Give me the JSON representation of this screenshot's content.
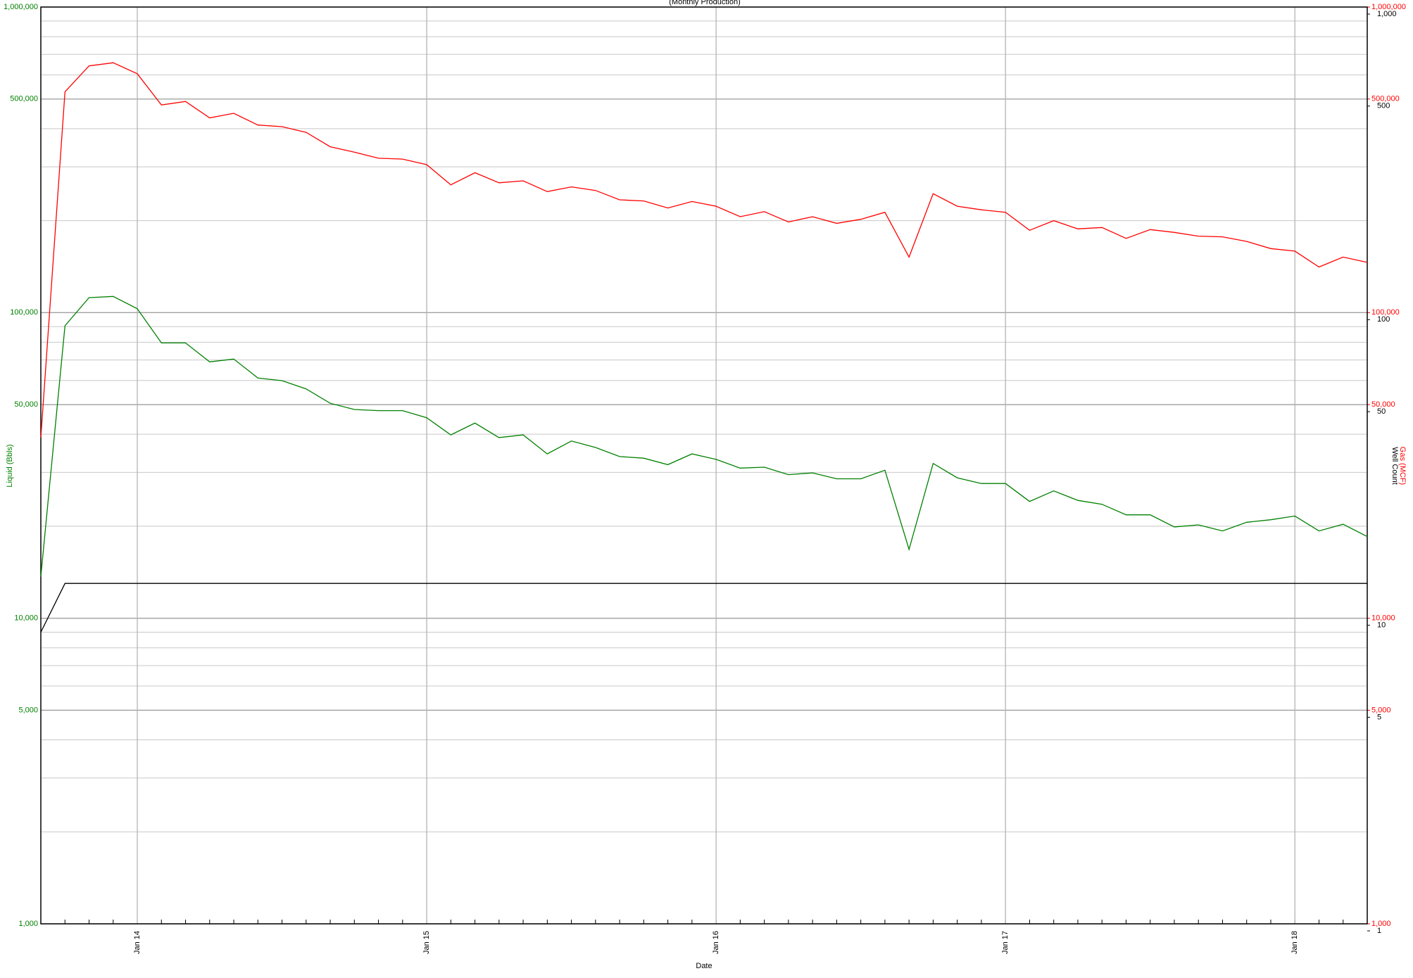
{
  "chart_data": {
    "type": "line",
    "title": "(Monthly Production)",
    "x_label": "Date",
    "x": [
      "2013-09",
      "2013-10",
      "2013-11",
      "2013-12",
      "2014-01",
      "2014-02",
      "2014-03",
      "2014-04",
      "2014-05",
      "2014-06",
      "2014-07",
      "2014-08",
      "2014-09",
      "2014-10",
      "2014-11",
      "2014-12",
      "2015-01",
      "2015-02",
      "2015-03",
      "2015-04",
      "2015-05",
      "2015-06",
      "2015-07",
      "2015-08",
      "2015-09",
      "2015-10",
      "2015-11",
      "2015-12",
      "2016-01",
      "2016-02",
      "2016-03",
      "2016-04",
      "2016-05",
      "2016-06",
      "2016-07",
      "2016-08",
      "2016-09",
      "2016-10",
      "2016-11",
      "2016-12",
      "2017-01",
      "2017-02",
      "2017-03",
      "2017-04",
      "2017-05",
      "2017-06",
      "2017-07",
      "2017-08",
      "2017-09",
      "2017-10",
      "2017-11",
      "2017-12",
      "2018-01",
      "2018-02",
      "2018-03",
      "2018-04"
    ],
    "xlim": [
      "2013-09",
      "2018-04"
    ],
    "xticks": [
      {
        "value": "2014-01",
        "label": "Jan 14"
      },
      {
        "value": "2015-01",
        "label": "Jan 15"
      },
      {
        "value": "2016-01",
        "label": "Jan 16"
      },
      {
        "value": "2017-01",
        "label": "Jan 17"
      },
      {
        "value": "2018-01",
        "label": "Jan 18"
      }
    ],
    "log_scale": true,
    "grid": true,
    "ylim": [
      1000,
      1000000
    ],
    "yticks": [
      {
        "value": 1000,
        "label": "1,000"
      },
      {
        "value": 5000,
        "label": "5,000"
      },
      {
        "value": 10000,
        "label": "10,000"
      },
      {
        "value": 50000,
        "label": "50,000"
      },
      {
        "value": 100000,
        "label": "100,000"
      },
      {
        "value": 500000,
        "label": "500,000"
      },
      {
        "value": 1000000,
        "label": "1,000,000"
      }
    ],
    "y2lim": [
      1000,
      1000000
    ],
    "y2ticks": [
      {
        "value": 1000,
        "label": "1,000"
      },
      {
        "value": 5000,
        "label": "5,000"
      },
      {
        "value": 10000,
        "label": "10,000"
      },
      {
        "value": 50000,
        "label": "50,000"
      },
      {
        "value": 100000,
        "label": "100,000"
      },
      {
        "value": 500000,
        "label": "500,000"
      },
      {
        "value": 1000000,
        "label": "1,000,000"
      }
    ],
    "y3lim": [
      1,
      1000
    ],
    "y3ticks": [
      1,
      5,
      10,
      50,
      100,
      500,
      {
        "value": 1000,
        "label": "1,000"
      }
    ],
    "series": [
      {
        "name": "Liquid (Bbls)",
        "color": "#008000",
        "values": [
          13700,
          90600,
          112000,
          113000,
          103000,
          79600,
          79600,
          69000,
          70500,
          61100,
          59900,
          56300,
          50500,
          48200,
          47800,
          47800,
          45300,
          39800,
          43500,
          39000,
          39800,
          34500,
          38000,
          36200,
          33800,
          33400,
          31800,
          34500,
          33100,
          31000,
          31200,
          29500,
          29900,
          28600,
          28600,
          30500,
          16800,
          32100,
          28800,
          27600,
          27600,
          24100,
          26100,
          24300,
          23600,
          21800,
          21800,
          19900,
          20200,
          19300,
          20600,
          21000,
          21600,
          19300,
          20300,
          18500
        ]
      },
      {
        "name": "Gas (MCF)",
        "color": "#ff0000",
        "axis": "y2",
        "values": [
          39000,
          528000,
          642000,
          657000,
          605000,
          478000,
          491000,
          434000,
          449000,
          411000,
          406000,
          389000,
          349000,
          335000,
          320000,
          318000,
          305000,
          262000,
          287000,
          266000,
          270000,
          249000,
          258000,
          251000,
          234000,
          232000,
          220000,
          231000,
          223000,
          206000,
          214000,
          198000,
          206000,
          196000,
          202000,
          213000,
          152000,
          245000,
          223000,
          217000,
          213000,
          186000,
          200000,
          188000,
          190000,
          175000,
          187000,
          183000,
          178000,
          177000,
          171000,
          162000,
          159000,
          141000,
          152000,
          146000
        ]
      },
      {
        "name": "Well Count",
        "color": "#000000",
        "axis": "y3",
        "values": [
          9,
          13,
          13,
          13,
          13,
          13,
          13,
          13,
          13,
          13,
          13,
          13,
          13,
          13,
          13,
          13,
          13,
          13,
          13,
          13,
          13,
          13,
          13,
          13,
          13,
          13,
          13,
          13,
          13,
          13,
          13,
          13,
          13,
          13,
          13,
          13,
          13,
          13,
          13,
          13,
          13,
          13,
          13,
          13,
          13,
          13,
          13,
          13,
          13,
          13,
          13,
          13,
          13,
          13,
          13,
          13
        ]
      }
    ]
  }
}
